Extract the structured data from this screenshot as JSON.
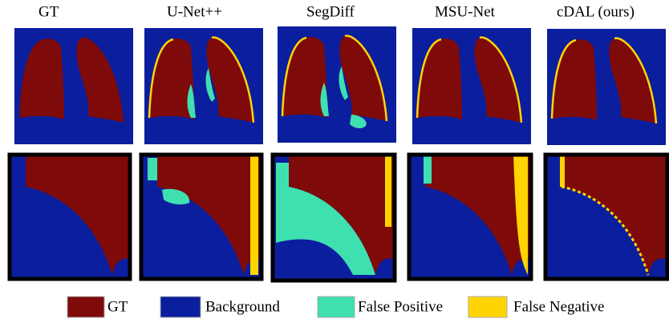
{
  "columns": [
    {
      "title": "GT"
    },
    {
      "title": "U-Net++"
    },
    {
      "title": "SegDiff"
    },
    {
      "title": "MSU-Net"
    },
    {
      "title": "cDAL (ours)"
    }
  ],
  "legend": [
    {
      "label": "GT"
    },
    {
      "label": "Background"
    },
    {
      "label": "False Positive"
    },
    {
      "label": "False Negative"
    }
  ]
}
